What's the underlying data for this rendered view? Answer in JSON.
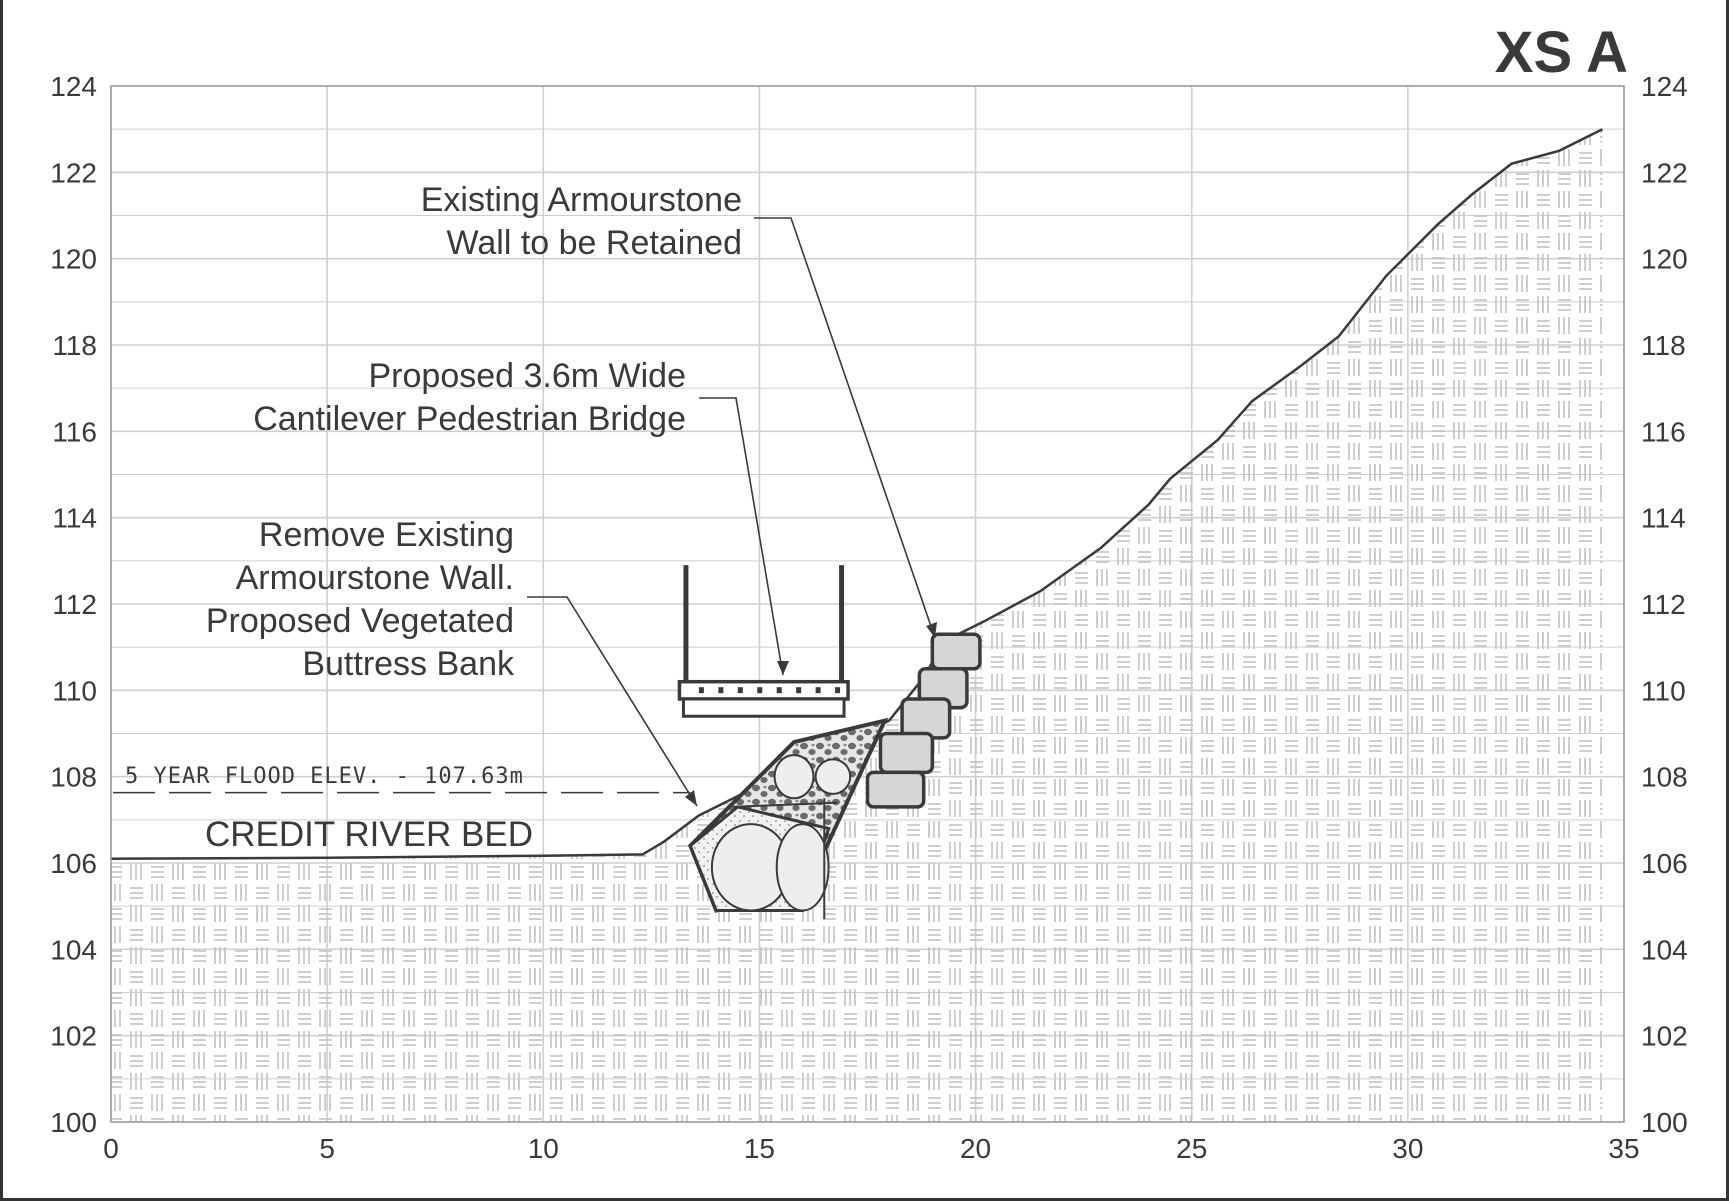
{
  "title": "XS A",
  "axes": {
    "y_ticks": [
      "100",
      "102",
      "104",
      "106",
      "108",
      "110",
      "112",
      "114",
      "116",
      "118",
      "120",
      "122",
      "124"
    ],
    "x_ticks": [
      "0",
      "5",
      "10",
      "15",
      "20",
      "25",
      "30",
      "35"
    ],
    "x_range": [
      0,
      35
    ],
    "y_range": [
      100,
      124
    ],
    "grid": true,
    "y_ticks_on_both_sides": true
  },
  "labels": {
    "river_bed": "CREDIT RIVER BED",
    "flood_level": "5 YEAR FLOOD ELEV. - 107.63m",
    "existing_wall": [
      "Existing Armourstone",
      "Wall to be Retained"
    ],
    "bridge": [
      "Proposed 3.6m Wide",
      "Cantilever Pedestrian Bridge"
    ],
    "buttress": [
      "Remove Existing",
      "Armourstone Wall.",
      "Proposed Vegetated",
      "Buttress Bank"
    ]
  },
  "profile": {
    "ground": [
      [
        0,
        106.1
      ],
      [
        5,
        106.12
      ],
      [
        10,
        106.17
      ],
      [
        12.3,
        106.2
      ],
      [
        12.8,
        106.5
      ],
      [
        13.6,
        107.1
      ],
      [
        14.4,
        107.5
      ],
      [
        15.2,
        107.9
      ],
      [
        16,
        108.4
      ],
      [
        17,
        108.8
      ],
      [
        18,
        109.3
      ],
      [
        18.8,
        110.3
      ],
      [
        19.2,
        111.0
      ],
      [
        19.6,
        111.3
      ],
      [
        20.2,
        111.6
      ],
      [
        21.5,
        112.3
      ],
      [
        22.9,
        113.3
      ],
      [
        24,
        114.3
      ],
      [
        24.5,
        114.9
      ],
      [
        25.6,
        115.8
      ],
      [
        26.4,
        116.7
      ],
      [
        27.5,
        117.5
      ],
      [
        28.4,
        118.2
      ],
      [
        29.5,
        119.6
      ],
      [
        30.7,
        120.8
      ],
      [
        31.5,
        121.5
      ],
      [
        32.4,
        122.2
      ],
      [
        33.5,
        122.5
      ],
      [
        34.5,
        123.0
      ]
    ],
    "flood_elevation": 107.63
  },
  "colors": {
    "line": "#3a3a3a",
    "grid": "#cfcfcf",
    "hatch": "#c2c2c2",
    "stone_fill": "#d6d6d6"
  }
}
